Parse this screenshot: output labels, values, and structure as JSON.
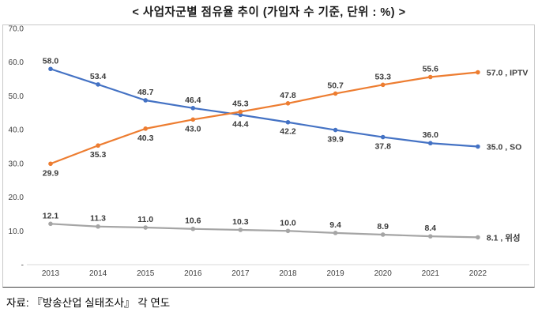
{
  "title": "< 사업자군별 점유율 추이 (가입자 수 기준, 단위 : %) >",
  "source_note": "자료: 『방송산업 실태조사』 각 연도",
  "chart_data": {
    "type": "line",
    "title": "< 사업자군별 점유율 추이 (가입자 수 기준, 단위 : %) >",
    "x": [
      "2013",
      "2014",
      "2015",
      "2016",
      "2017",
      "2018",
      "2019",
      "2020",
      "2021",
      "2022"
    ],
    "series": [
      {
        "name": "SO",
        "color": "#4472C4",
        "values": [
          58.0,
          53.4,
          48.7,
          46.4,
          44.4,
          42.2,
          39.9,
          37.8,
          36.0,
          35.0
        ],
        "label_positions": [
          "above",
          "above",
          "above",
          "above",
          "below",
          "below",
          "below",
          "below",
          "above",
          "end"
        ]
      },
      {
        "name": "IPTV",
        "color": "#ED7D31",
        "values": [
          29.9,
          35.3,
          40.3,
          43.0,
          45.3,
          47.8,
          50.7,
          53.3,
          55.6,
          57.0
        ],
        "label_positions": [
          "below",
          "below",
          "below",
          "below",
          "above",
          "above",
          "above",
          "above",
          "above",
          "end"
        ]
      },
      {
        "name": "위성",
        "color": "#A5A5A5",
        "values": [
          12.1,
          11.3,
          11.0,
          10.6,
          10.3,
          10.0,
          9.4,
          8.9,
          8.4,
          8.1
        ],
        "label_positions": [
          "above",
          "above",
          "above",
          "above",
          "above",
          "above",
          "above",
          "above",
          "above",
          "end"
        ]
      }
    ],
    "ylim": [
      0,
      70
    ],
    "yticks": [
      0,
      10,
      20,
      30,
      40,
      50,
      60,
      70
    ],
    "ytick_labels": [
      "-",
      "10.0",
      "20.0",
      "30.0",
      "40.0",
      "50.0",
      "60.0",
      "70.0"
    ],
    "xlabel": "",
    "ylabel": "",
    "grid": false,
    "legend_position": "end-of-line",
    "data_labels": true,
    "axis_color": "#d9d9d9",
    "tick_label_color": "#404040",
    "data_label_color": "#3b3b3b"
  }
}
